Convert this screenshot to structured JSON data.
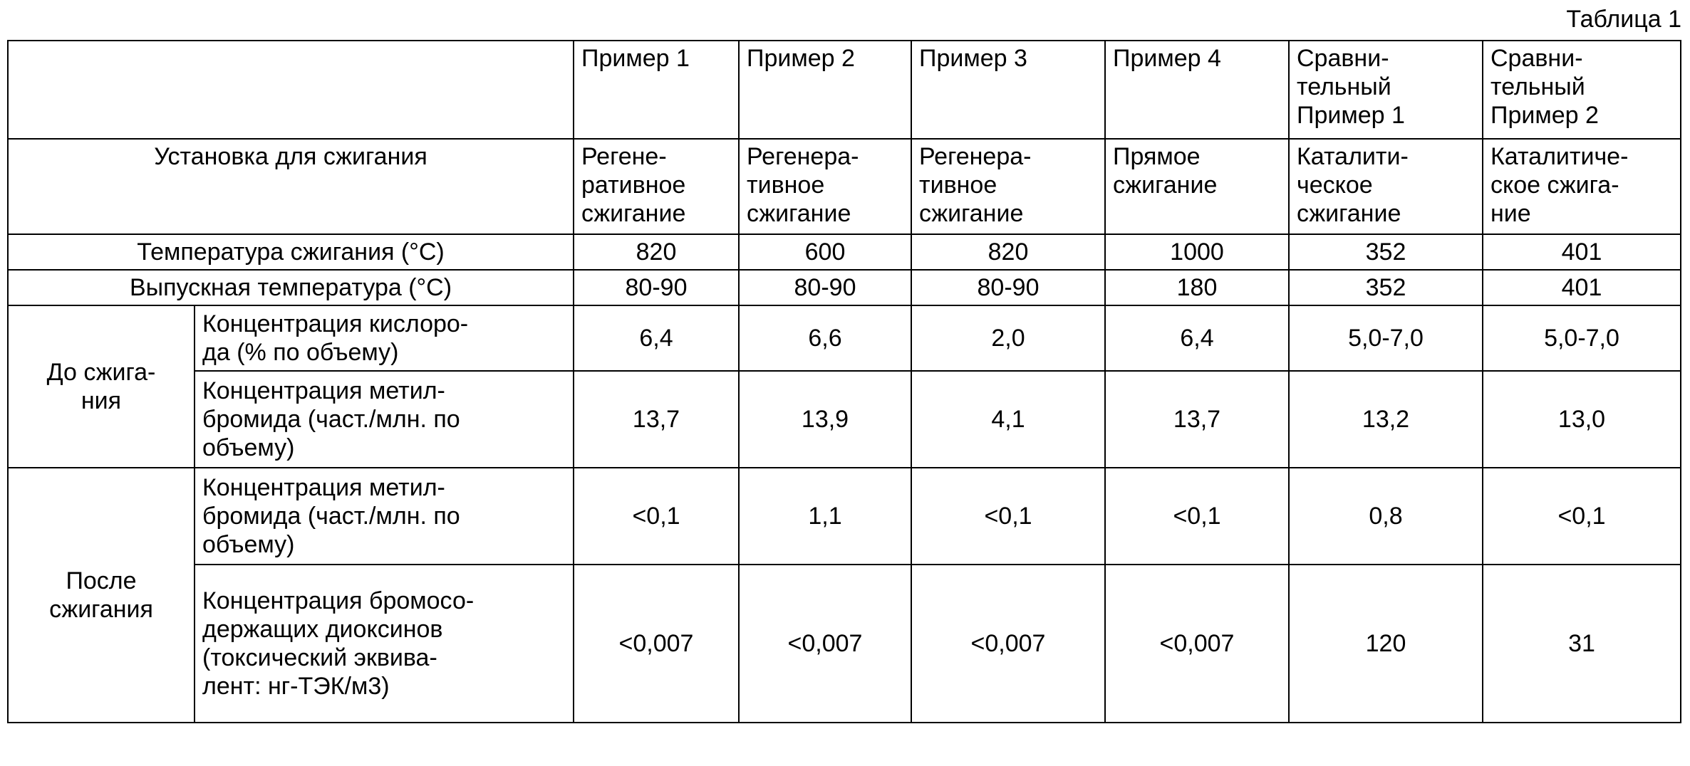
{
  "caption": "Таблица 1",
  "columns": [
    "Пример 1",
    "Пример 2",
    "Пример 3",
    "Пример 4",
    "Сравни-\nтельный\nПример 1",
    "Сравни-\nтельный\nПример 2"
  ],
  "incineration": {
    "label": "Установка для сжигания",
    "values": [
      "Регене-\nративное\nсжигание",
      "Регенера-\nтивное\nсжигание",
      "Регенера-\nтивное\nсжигание",
      "Прямое\nсжигание",
      "Каталити-\nческое\nсжигание",
      "Каталитиче-\nское сжига-\nние"
    ]
  },
  "combustion_temp": {
    "label": "Температура сжигания (°С)",
    "values": [
      "820",
      "600",
      "820",
      "1000",
      "352",
      "401"
    ]
  },
  "outlet_temp": {
    "label": "Выпускная температура (°С)",
    "values": [
      "80-90",
      "80-90",
      "80-90",
      "180",
      "352",
      "401"
    ]
  },
  "before": {
    "label": "До сжига-\nния",
    "oxygen": {
      "label": "Концентрация кислоро-\nда (% по объему)",
      "values": [
        "6,4",
        "6,6",
        "2,0",
        "6,4",
        "5,0-7,0",
        "5,0-7,0"
      ]
    },
    "methyl_bromide": {
      "label": "Концентрация метил-\nбромида (част./млн. по\nобъему)",
      "values": [
        "13,7",
        "13,9",
        "4,1",
        "13,7",
        "13,2",
        "13,0"
      ]
    }
  },
  "after": {
    "label": "После\nсжигания",
    "methyl_bromide": {
      "label": "Концентрация метил-\nбромида (част./млн. по\nобъему)",
      "values": [
        "<0,1",
        "1,1",
        "<0,1",
        "<0,1",
        "0,8",
        "<0,1"
      ]
    },
    "dioxins": {
      "label": "Концентрация бромосо-\nдержащих диоксинов\n(токсический эквива-\nлент: нг-ТЭК/м3)",
      "values": [
        "<0,007",
        "<0,007",
        "<0,007",
        "<0,007",
        "120",
        "31"
      ]
    }
  }
}
